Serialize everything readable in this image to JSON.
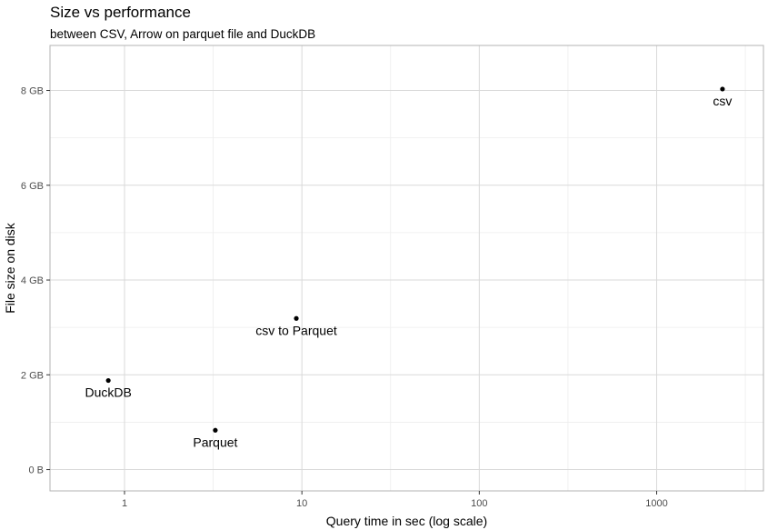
{
  "chart_data": {
    "type": "scatter",
    "title": "Size vs performance",
    "subtitle": "between CSV, Arrow on parquet file and DuckDB",
    "xlabel": "Query time in sec (log scale)",
    "ylabel": "File size on disk",
    "x_scale": "log10",
    "xlim": [
      0.38,
      4000
    ],
    "ylim": [
      -0.45,
      8.95
    ],
    "grid": true,
    "x_ticks": [
      {
        "value": 1,
        "label": "1"
      },
      {
        "value": 10,
        "label": "10"
      },
      {
        "value": 100,
        "label": "100"
      },
      {
        "value": 1000,
        "label": "1000"
      }
    ],
    "y_ticks": [
      {
        "value": 0,
        "label": "0 B"
      },
      {
        "value": 2,
        "label": "2 GB"
      },
      {
        "value": 4,
        "label": "4 GB"
      },
      {
        "value": 6,
        "label": "6 GB"
      },
      {
        "value": 8,
        "label": "8 GB"
      }
    ],
    "points": [
      {
        "label": "DuckDB",
        "x": 0.81,
        "y": 1.88
      },
      {
        "label": "Parquet",
        "x": 3.25,
        "y": 0.83
      },
      {
        "label": "csv to Parquet",
        "x": 9.3,
        "y": 3.19
      },
      {
        "label": "csv",
        "x": 2350,
        "y": 8.03
      }
    ],
    "colors": {
      "panel_border": "#b3b3b3",
      "grid_major": "#d9d9d9",
      "grid_minor": "#ededed",
      "point": "#000000",
      "tick_text": "#4d4d4d"
    }
  }
}
